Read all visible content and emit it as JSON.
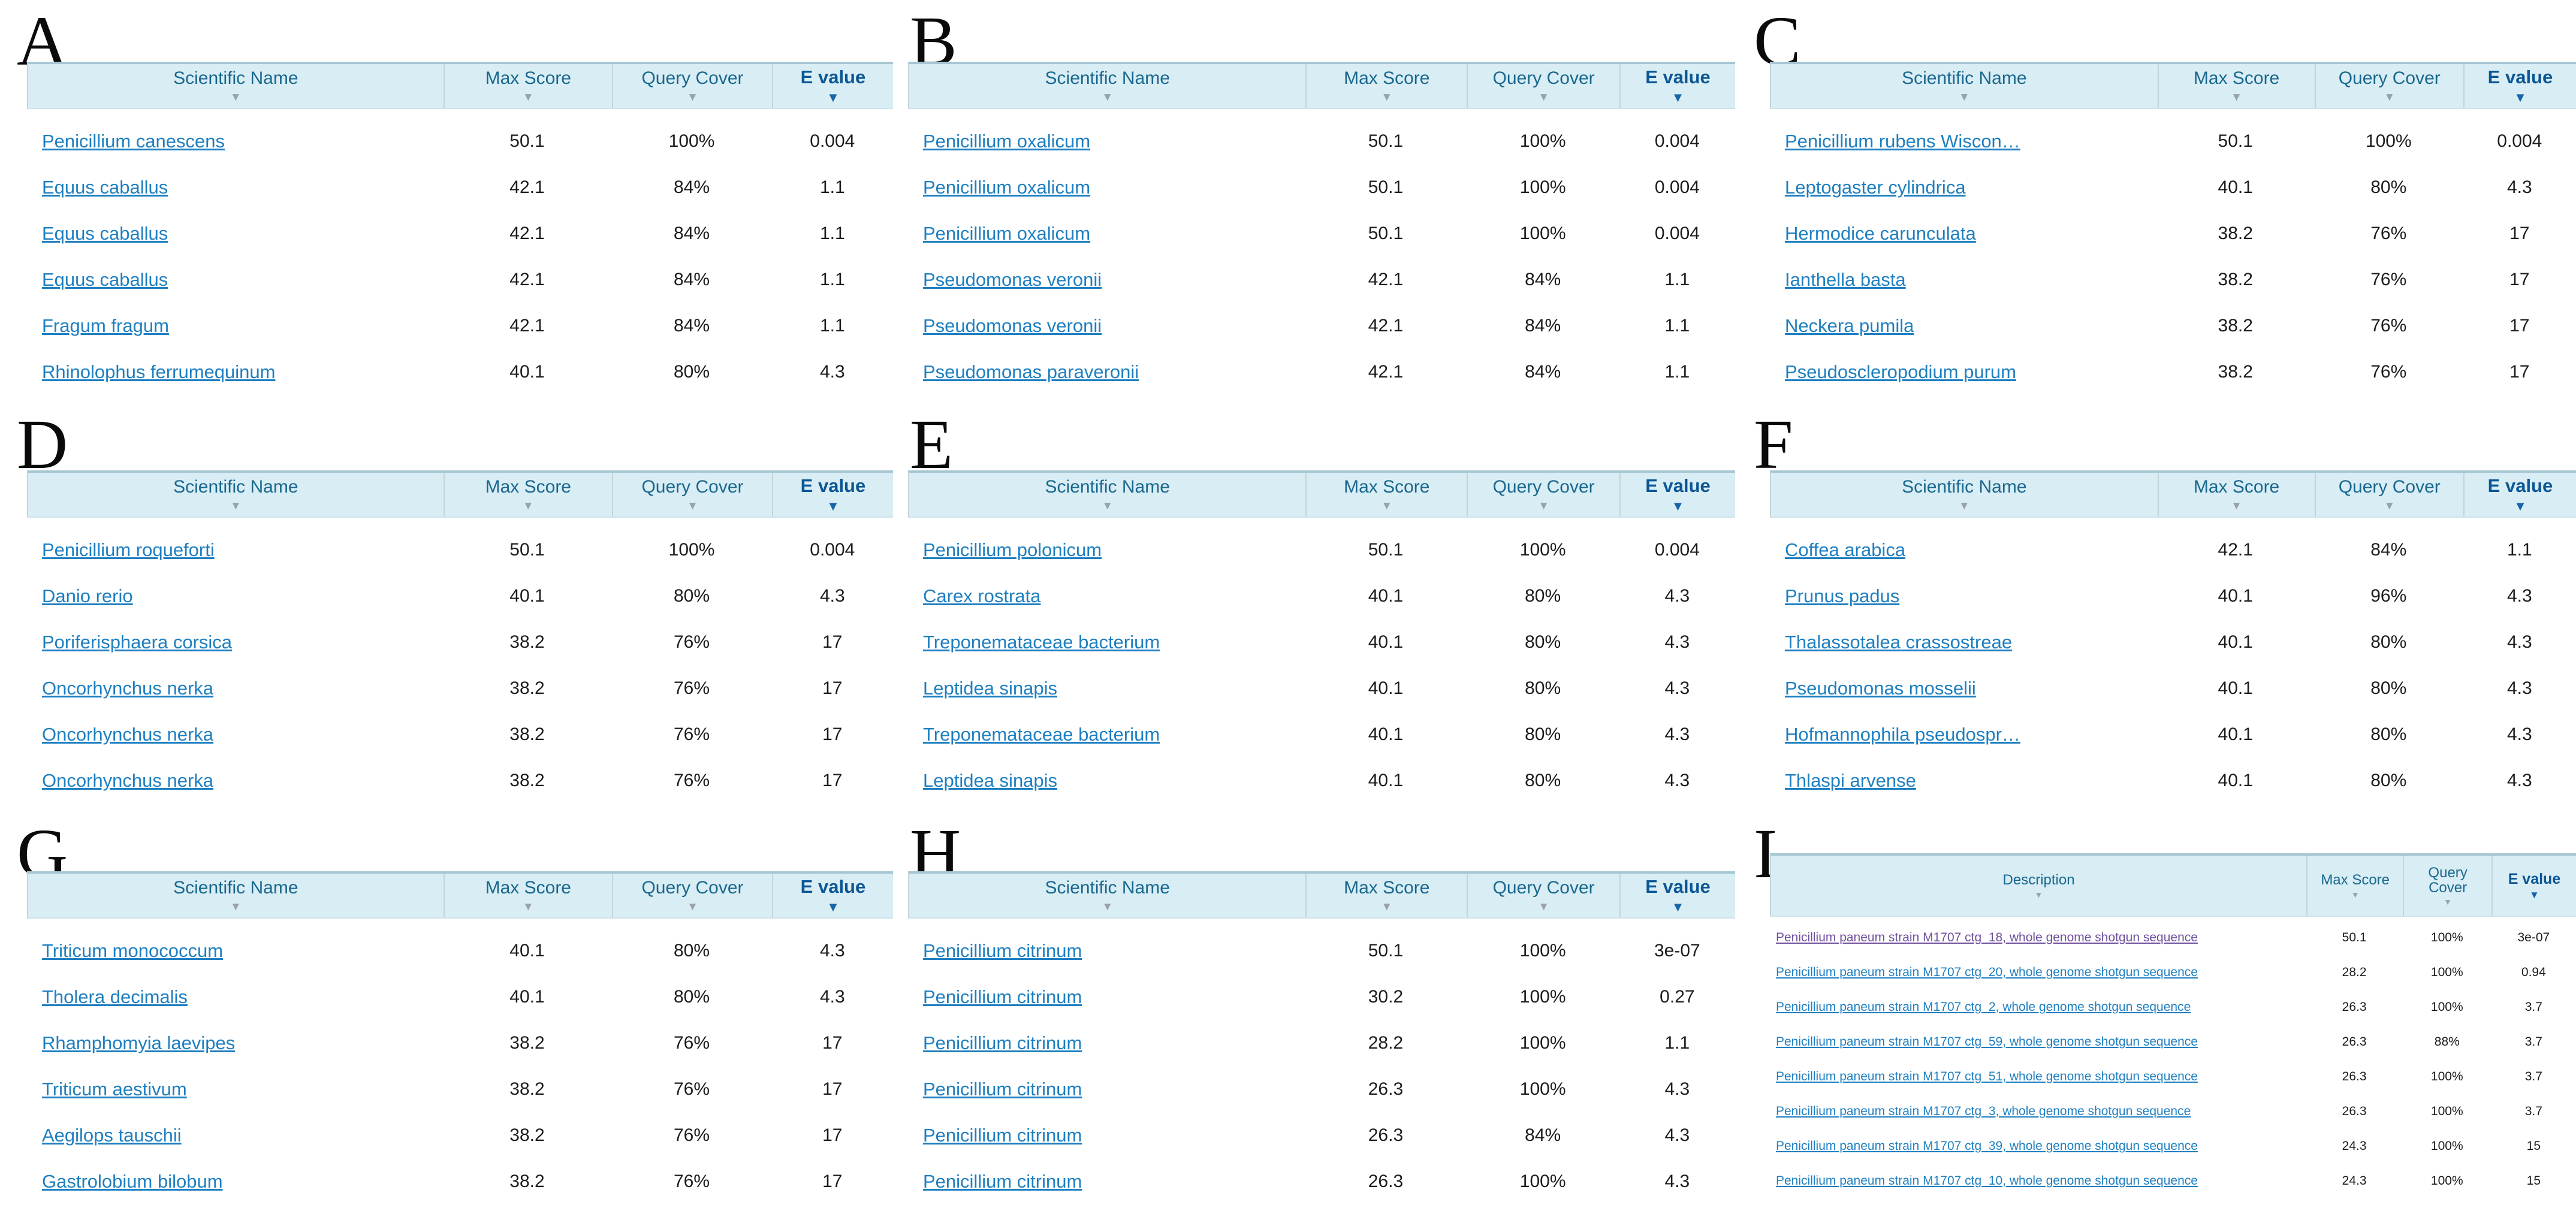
{
  "icons": {
    "sort_descending": "▼"
  },
  "colors": {
    "header_bg": "#d9edf4",
    "header_top_border": "#a6c6d4",
    "header_separator": "#c6d3d9",
    "header_text": "#19688e",
    "evalue_header_text": "#0b5795",
    "sort_triangle_gray": "#98a2a8",
    "sort_triangle_blue": "#1565a8",
    "link_blue": "#1e7fc1",
    "link_visited_purple": "#6f4f9d",
    "value_text": "#1c1c1c"
  },
  "panels": [
    {
      "label": "A",
      "columns": [
        "Scientific Name",
        "Max Score",
        "Query Cover",
        "E value"
      ],
      "rows": [
        {
          "name": "Penicillium canescens",
          "max_score": "50.1",
          "query_cover": "100%",
          "e_value": "0.004",
          "visited": false
        },
        {
          "name": "Equus caballus",
          "max_score": "42.1",
          "query_cover": "84%",
          "e_value": "1.1",
          "visited": false
        },
        {
          "name": "Equus caballus",
          "max_score": "42.1",
          "query_cover": "84%",
          "e_value": "1.1",
          "visited": false
        },
        {
          "name": "Equus caballus",
          "max_score": "42.1",
          "query_cover": "84%",
          "e_value": "1.1",
          "visited": false
        },
        {
          "name": "Fragum fragum",
          "max_score": "42.1",
          "query_cover": "84%",
          "e_value": "1.1",
          "visited": false
        },
        {
          "name": "Rhinolophus ferrumequinum",
          "max_score": "40.1",
          "query_cover": "80%",
          "e_value": "4.3",
          "visited": false
        }
      ]
    },
    {
      "label": "B",
      "columns": [
        "Scientific Name",
        "Max Score",
        "Query Cover",
        "E value"
      ],
      "rows": [
        {
          "name": "Penicillium oxalicum",
          "max_score": "50.1",
          "query_cover": "100%",
          "e_value": "0.004",
          "visited": false
        },
        {
          "name": "Penicillium oxalicum",
          "max_score": "50.1",
          "query_cover": "100%",
          "e_value": "0.004",
          "visited": false
        },
        {
          "name": "Penicillium oxalicum",
          "max_score": "50.1",
          "query_cover": "100%",
          "e_value": "0.004",
          "visited": false
        },
        {
          "name": "Pseudomonas veronii",
          "max_score": "42.1",
          "query_cover": "84%",
          "e_value": "1.1",
          "visited": false
        },
        {
          "name": "Pseudomonas veronii",
          "max_score": "42.1",
          "query_cover": "84%",
          "e_value": "1.1",
          "visited": false
        },
        {
          "name": "Pseudomonas paraveronii",
          "max_score": "42.1",
          "query_cover": "84%",
          "e_value": "1.1",
          "visited": false
        }
      ]
    },
    {
      "label": "C",
      "columns": [
        "Scientific Name",
        "Max Score",
        "Query Cover",
        "E value"
      ],
      "rows": [
        {
          "name": "Penicillium rubens Wiscon…",
          "max_score": "50.1",
          "query_cover": "100%",
          "e_value": "0.004",
          "visited": false
        },
        {
          "name": "Leptogaster cylindrica",
          "max_score": "40.1",
          "query_cover": "80%",
          "e_value": "4.3",
          "visited": false
        },
        {
          "name": "Hermodice carunculata",
          "max_score": "38.2",
          "query_cover": "76%",
          "e_value": "17",
          "visited": false
        },
        {
          "name": "Ianthella basta",
          "max_score": "38.2",
          "query_cover": "76%",
          "e_value": "17",
          "visited": false
        },
        {
          "name": "Neckera pumila",
          "max_score": "38.2",
          "query_cover": "76%",
          "e_value": "17",
          "visited": false
        },
        {
          "name": "Pseudoscleropodium purum",
          "max_score": "38.2",
          "query_cover": "76%",
          "e_value": "17",
          "visited": false
        }
      ]
    },
    {
      "label": "D",
      "columns": [
        "Scientific Name",
        "Max Score",
        "Query Cover",
        "E value"
      ],
      "rows": [
        {
          "name": "Penicillium roqueforti",
          "max_score": "50.1",
          "query_cover": "100%",
          "e_value": "0.004",
          "visited": false
        },
        {
          "name": "Danio rerio",
          "max_score": "40.1",
          "query_cover": "80%",
          "e_value": "4.3",
          "visited": false
        },
        {
          "name": "Poriferisphaera corsica",
          "max_score": "38.2",
          "query_cover": "76%",
          "e_value": "17",
          "visited": false
        },
        {
          "name": "Oncorhynchus nerka",
          "max_score": "38.2",
          "query_cover": "76%",
          "e_value": "17",
          "visited": false
        },
        {
          "name": "Oncorhynchus nerka",
          "max_score": "38.2",
          "query_cover": "76%",
          "e_value": "17",
          "visited": false
        },
        {
          "name": "Oncorhynchus nerka",
          "max_score": "38.2",
          "query_cover": "76%",
          "e_value": "17",
          "visited": false
        }
      ]
    },
    {
      "label": "E",
      "columns": [
        "Scientific Name",
        "Max Score",
        "Query Cover",
        "E value"
      ],
      "rows": [
        {
          "name": "Penicillium polonicum",
          "max_score": "50.1",
          "query_cover": "100%",
          "e_value": "0.004",
          "visited": false
        },
        {
          "name": "Carex rostrata",
          "max_score": "40.1",
          "query_cover": "80%",
          "e_value": "4.3",
          "visited": false
        },
        {
          "name": "Treponemataceae bacterium",
          "max_score": "40.1",
          "query_cover": "80%",
          "e_value": "4.3",
          "visited": false
        },
        {
          "name": "Leptidea sinapis",
          "max_score": "40.1",
          "query_cover": "80%",
          "e_value": "4.3",
          "visited": false
        },
        {
          "name": "Treponemataceae bacterium",
          "max_score": "40.1",
          "query_cover": "80%",
          "e_value": "4.3",
          "visited": false
        },
        {
          "name": "Leptidea sinapis",
          "max_score": "40.1",
          "query_cover": "80%",
          "e_value": "4.3",
          "visited": false
        }
      ]
    },
    {
      "label": "F",
      "columns": [
        "Scientific Name",
        "Max Score",
        "Query Cover",
        "E value"
      ],
      "rows": [
        {
          "name": "Coffea arabica",
          "max_score": "42.1",
          "query_cover": "84%",
          "e_value": "1.1",
          "visited": false
        },
        {
          "name": "Prunus padus",
          "max_score": "40.1",
          "query_cover": "96%",
          "e_value": "4.3",
          "visited": false
        },
        {
          "name": "Thalassotalea crassostreae",
          "max_score": "40.1",
          "query_cover": "80%",
          "e_value": "4.3",
          "visited": false
        },
        {
          "name": "Pseudomonas mosselii",
          "max_score": "40.1",
          "query_cover": "80%",
          "e_value": "4.3",
          "visited": false
        },
        {
          "name": "Hofmannophila pseudospr…",
          "max_score": "40.1",
          "query_cover": "80%",
          "e_value": "4.3",
          "visited": false
        },
        {
          "name": "Thlaspi arvense",
          "max_score": "40.1",
          "query_cover": "80%",
          "e_value": "4.3",
          "visited": false
        }
      ]
    },
    {
      "label": "G",
      "columns": [
        "Scientific Name",
        "Max Score",
        "Query Cover",
        "E value"
      ],
      "rows": [
        {
          "name": "Triticum monococcum",
          "max_score": "40.1",
          "query_cover": "80%",
          "e_value": "4.3",
          "visited": false
        },
        {
          "name": "Tholera decimalis",
          "max_score": "40.1",
          "query_cover": "80%",
          "e_value": "4.3",
          "visited": false
        },
        {
          "name": "Rhamphomyia laevipes",
          "max_score": "38.2",
          "query_cover": "76%",
          "e_value": "17",
          "visited": false
        },
        {
          "name": "Triticum aestivum",
          "max_score": "38.2",
          "query_cover": "76%",
          "e_value": "17",
          "visited": false
        },
        {
          "name": "Aegilops tauschii",
          "max_score": "38.2",
          "query_cover": "76%",
          "e_value": "17",
          "visited": false
        },
        {
          "name": "Gastrolobium bilobum",
          "max_score": "38.2",
          "query_cover": "76%",
          "e_value": "17",
          "visited": false
        }
      ]
    },
    {
      "label": "H",
      "columns": [
        "Scientific Name",
        "Max Score",
        "Query Cover",
        "E value"
      ],
      "rows": [
        {
          "name": "Penicillium citrinum",
          "max_score": "50.1",
          "query_cover": "100%",
          "e_value": "3e-07",
          "visited": false
        },
        {
          "name": "Penicillium citrinum",
          "max_score": "30.2",
          "query_cover": "100%",
          "e_value": "0.27",
          "visited": false
        },
        {
          "name": "Penicillium citrinum",
          "max_score": "28.2",
          "query_cover": "100%",
          "e_value": "1.1",
          "visited": false
        },
        {
          "name": "Penicillium citrinum",
          "max_score": "26.3",
          "query_cover": "100%",
          "e_value": "4.3",
          "visited": false
        },
        {
          "name": "Penicillium citrinum",
          "max_score": "26.3",
          "query_cover": "84%",
          "e_value": "4.3",
          "visited": false
        },
        {
          "name": "Penicillium citrinum",
          "max_score": "26.3",
          "query_cover": "100%",
          "e_value": "4.3",
          "visited": false
        }
      ]
    },
    {
      "label": "I",
      "columns": [
        "Description",
        "Max Score",
        "Query Cover",
        "E value"
      ],
      "rows": [
        {
          "name": "Penicillium paneum strain M1707 ctg_18, whole genome shotgun sequence",
          "max_score": "50.1",
          "query_cover": "100%",
          "e_value": "3e-07",
          "visited": true
        },
        {
          "name": "Penicillium paneum strain M1707 ctg_20, whole genome shotgun sequence",
          "max_score": "28.2",
          "query_cover": "100%",
          "e_value": "0.94",
          "visited": false
        },
        {
          "name": "Penicillium paneum strain M1707 ctg_2, whole genome shotgun sequence",
          "max_score": "26.3",
          "query_cover": "100%",
          "e_value": "3.7",
          "visited": false
        },
        {
          "name": "Penicillium paneum strain M1707 ctg_59, whole genome shotgun sequence",
          "max_score": "26.3",
          "query_cover": "88%",
          "e_value": "3.7",
          "visited": false
        },
        {
          "name": "Penicillium paneum strain M1707 ctg_51, whole genome shotgun sequence",
          "max_score": "26.3",
          "query_cover": "100%",
          "e_value": "3.7",
          "visited": false
        },
        {
          "name": "Penicillium paneum strain M1707 ctg_3, whole genome shotgun sequence",
          "max_score": "26.3",
          "query_cover": "100%",
          "e_value": "3.7",
          "visited": false
        },
        {
          "name": "Penicillium paneum strain M1707 ctg_39, whole genome shotgun sequence",
          "max_score": "24.3",
          "query_cover": "100%",
          "e_value": "15",
          "visited": false
        },
        {
          "name": "Penicillium paneum strain M1707 ctg_10, whole genome shotgun sequence",
          "max_score": "24.3",
          "query_cover": "100%",
          "e_value": "15",
          "visited": false
        }
      ]
    }
  ]
}
